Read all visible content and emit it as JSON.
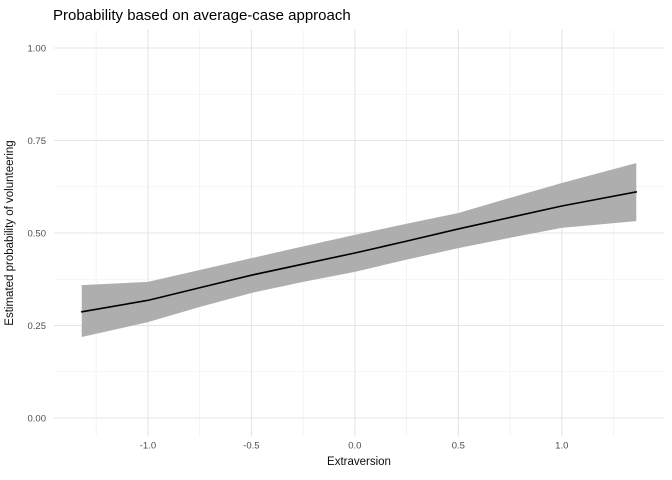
{
  "chart_data": {
    "type": "line",
    "title": "Probability based on average-case approach",
    "xlabel": "Extraversion",
    "ylabel": "Estimated probability of volunteering",
    "x": [
      -1.32,
      -1.0,
      -0.75,
      -0.5,
      -0.25,
      0.0,
      0.25,
      0.5,
      0.75,
      1.0,
      1.36
    ],
    "series": [
      {
        "name": "fit",
        "values": [
          0.287,
          0.318,
          0.352,
          0.386,
          0.416,
          0.446,
          0.478,
          0.511,
          0.542,
          0.573,
          0.611
        ]
      },
      {
        "name": "ci_lower",
        "values": [
          0.219,
          0.259,
          0.3,
          0.338,
          0.368,
          0.395,
          0.428,
          0.459,
          0.487,
          0.514,
          0.532
        ]
      },
      {
        "name": "ci_upper",
        "values": [
          0.359,
          0.368,
          0.4,
          0.432,
          0.464,
          0.495,
          0.525,
          0.554,
          0.595,
          0.635,
          0.689
        ]
      }
    ],
    "x_ticks": [
      {
        "v": -1.0,
        "label": "-1.0"
      },
      {
        "v": -0.5,
        "label": "-0.5"
      },
      {
        "v": 0.0,
        "label": "0.0"
      },
      {
        "v": 0.5,
        "label": "0.5"
      },
      {
        "v": 1.0,
        "label": "1.0"
      }
    ],
    "y_ticks": [
      {
        "v": 0.0,
        "label": "0.00"
      },
      {
        "v": 0.25,
        "label": "0.25"
      },
      {
        "v": 0.5,
        "label": "0.50"
      },
      {
        "v": 0.75,
        "label": "0.75"
      },
      {
        "v": 1.0,
        "label": "1.00"
      }
    ],
    "x_minor": [
      -1.25,
      -0.75,
      -0.25,
      0.25,
      0.75,
      1.25
    ],
    "y_minor": [
      0.125,
      0.375,
      0.625,
      0.875
    ],
    "xlim": [
      -1.454,
      1.494
    ],
    "ylim": [
      -0.05,
      1.05
    ],
    "grid": "major+minor",
    "legend": "none"
  },
  "colors": {
    "background": "#ffffff",
    "ribbon": "#aeaeae",
    "line": "#000000",
    "grid_major": "#e5e5e5",
    "grid_minor": "#f2f2f2",
    "tick_label": "#4d4d4d",
    "axis_title": "#0d0d0d",
    "title": "#000000"
  }
}
